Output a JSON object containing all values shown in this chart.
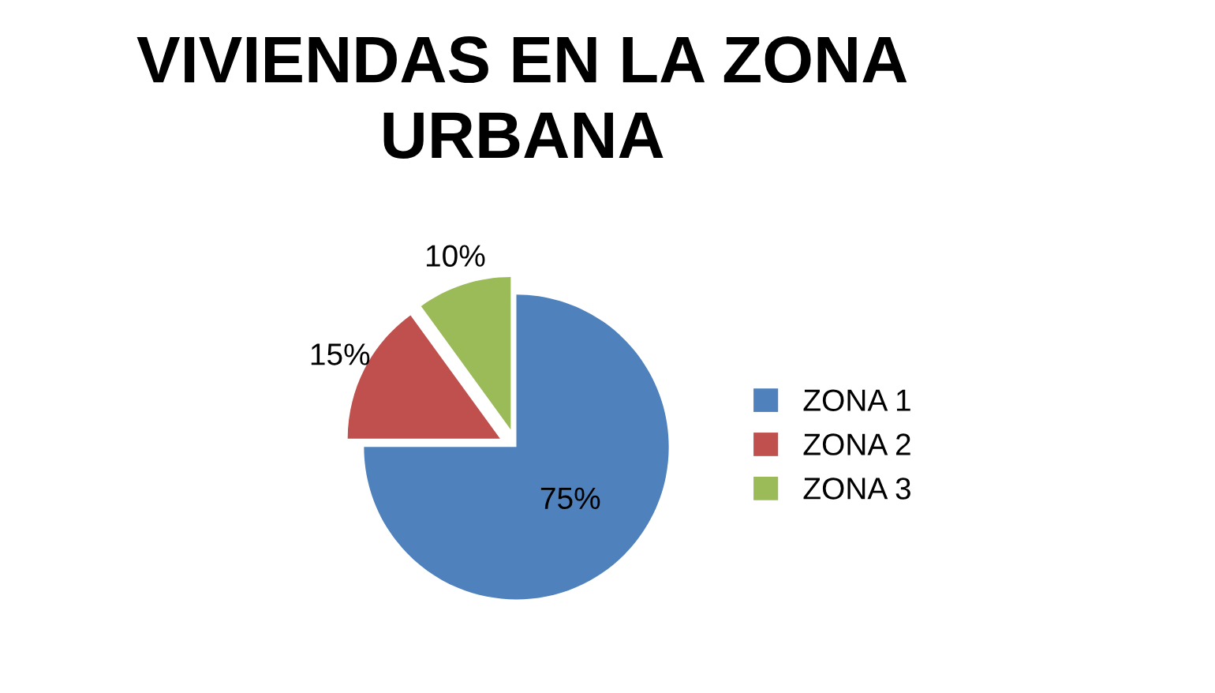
{
  "chart_data": {
    "type": "pie",
    "title": "VIVIENDAS EN LA ZONA URBANA",
    "categories": [
      "ZONA 1",
      "ZONA 2",
      "ZONA 3"
    ],
    "values": [
      75,
      15,
      10
    ],
    "colors": [
      "#4f81bd",
      "#c0504d",
      "#9bbb59"
    ],
    "value_labels": [
      "75%",
      "15%",
      "10%"
    ],
    "legend": "right"
  }
}
